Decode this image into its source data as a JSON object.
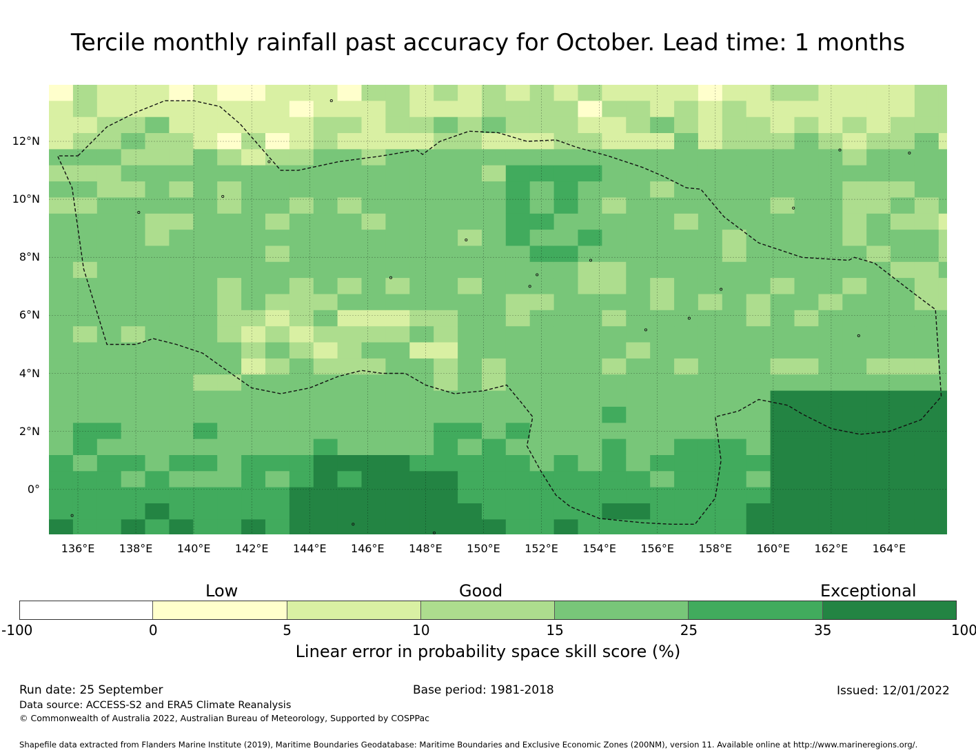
{
  "title": "Tercile monthly rainfall past accuracy for October. Lead time: 1 months",
  "map": {
    "lat_labels": [
      "12°N",
      "10°N",
      "8°N",
      "6°N",
      "4°N",
      "2°N",
      "0°"
    ],
    "lon_labels": [
      "136°E",
      "138°E",
      "140°E",
      "142°E",
      "144°E",
      "146°E",
      "148°E",
      "150°E",
      "152°E",
      "154°E",
      "156°E",
      "158°E",
      "160°E",
      "162°E",
      "164°E"
    ],
    "extent_deg": {
      "lon_min": 135.0,
      "lon_max": 166.0,
      "lat_min": -1.55,
      "lat_max": 13.95
    },
    "grid_lons": [
      136,
      138,
      140,
      142,
      144,
      146,
      148,
      150,
      152,
      154,
      156,
      158,
      160,
      162,
      164
    ],
    "grid_lats": [
      12,
      10,
      8,
      6,
      4,
      2,
      0
    ],
    "cell_size_deg": [
      0.83,
      0.555
    ],
    "bin_colors": [
      "#ffffff",
      "#ffffcc",
      "#d9f0a3",
      "#addd8e",
      "#78c679",
      "#41ab5d",
      "#238443"
    ],
    "eez_boundary_lonlat": [
      [
        136.0,
        11.5
      ],
      [
        137.0,
        12.5
      ],
      [
        138.0,
        13.0
      ],
      [
        139.0,
        13.4
      ],
      [
        140.0,
        13.4
      ],
      [
        140.9,
        13.2
      ],
      [
        141.6,
        12.6
      ],
      [
        142.3,
        11.8
      ],
      [
        143.0,
        11.0
      ],
      [
        143.6,
        11.0
      ],
      [
        145.0,
        11.3
      ],
      [
        146.5,
        11.5
      ],
      [
        147.7,
        11.7
      ],
      [
        147.9,
        11.55
      ],
      [
        148.5,
        12.0
      ],
      [
        149.5,
        12.35
      ],
      [
        150.5,
        12.3
      ],
      [
        151.5,
        12.0
      ],
      [
        152.5,
        12.05
      ],
      [
        153.2,
        11.8
      ],
      [
        154.3,
        11.5
      ],
      [
        155.5,
        11.1
      ],
      [
        156.2,
        10.8
      ],
      [
        157.0,
        10.4
      ],
      [
        157.5,
        10.35
      ],
      [
        158.3,
        9.4
      ],
      [
        159.5,
        8.5
      ],
      [
        161.0,
        8.0
      ],
      [
        162.6,
        7.9
      ],
      [
        162.8,
        8.0
      ],
      [
        163.5,
        7.8
      ],
      [
        164.8,
        6.8
      ],
      [
        165.6,
        6.2
      ],
      [
        165.8,
        3.2
      ],
      [
        165.1,
        2.4
      ],
      [
        164.0,
        2.0
      ],
      [
        163.0,
        1.9
      ],
      [
        162.0,
        2.1
      ],
      [
        161.0,
        2.6
      ],
      [
        160.5,
        2.9
      ],
      [
        159.5,
        3.1
      ],
      [
        158.8,
        2.7
      ],
      [
        158.0,
        2.5
      ],
      [
        158.2,
        1.0
      ],
      [
        158.0,
        -0.3
      ],
      [
        157.3,
        -1.2
      ],
      [
        156.5,
        -1.2
      ],
      [
        155.5,
        -1.15
      ],
      [
        154.0,
        -1.0
      ],
      [
        153.0,
        -0.6
      ],
      [
        152.5,
        -0.2
      ],
      [
        152.0,
        0.6
      ],
      [
        151.5,
        1.5
      ],
      [
        151.7,
        2.5
      ],
      [
        151.3,
        3.0
      ],
      [
        150.8,
        3.6
      ],
      [
        150.0,
        3.4
      ],
      [
        149.0,
        3.3
      ],
      [
        148.0,
        3.6
      ],
      [
        147.3,
        4.0
      ],
      [
        146.5,
        4.0
      ],
      [
        145.8,
        4.1
      ],
      [
        145.0,
        3.9
      ],
      [
        144.0,
        3.5
      ],
      [
        143.0,
        3.3
      ],
      [
        142.0,
        3.5
      ],
      [
        141.0,
        4.2
      ],
      [
        140.3,
        4.7
      ],
      [
        139.4,
        5.0
      ],
      [
        138.6,
        5.2
      ],
      [
        138.0,
        5.0
      ],
      [
        137.0,
        5.0
      ],
      [
        136.2,
        7.6
      ],
      [
        135.8,
        10.4
      ],
      [
        135.3,
        11.5
      ]
    ]
  },
  "legend": {
    "categories": [
      "Low",
      "Good",
      "Exceptional"
    ],
    "ticks": [
      "-100",
      "0",
      "5",
      "10",
      "15",
      "25",
      "35",
      "100"
    ],
    "colors": [
      "#ffffff",
      "#ffffcc",
      "#d9f0a3",
      "#addd8e",
      "#78c679",
      "#41ab5d",
      "#238443"
    ],
    "label": "Linear error in probability space skill score (%)"
  },
  "footer": {
    "run_date": "Run date: 25 September",
    "base_period": "Base period: 1981-2018",
    "issued": "Issued: 12/01/2022",
    "data_source": "Data source: ACCESS-S2 and ERA5 Climate Reanalysis",
    "copyright": "© Commonwealth of Australia 2022, Australian Bureau of Meteorology, Supported by COSPPac",
    "shapefile": "Shapefile data extracted from Flanders Marine Institute (2019), Maritime Boundaries Geodatabase: Maritime Boundaries and Exclusive Economic Zones (200NM), version 11. Available online at http://www.marineregions.org/."
  }
}
